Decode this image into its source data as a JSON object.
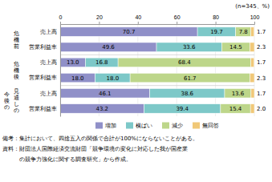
{
  "chart_data": {
    "type": "bar",
    "orientation": "horizontal",
    "stacked": true,
    "data_labels": true,
    "grid": true,
    "legend": "bottom",
    "categories": [
      "売上高",
      "営業利益率",
      "売上高",
      "営業利益率",
      "売上高",
      "営業利益率"
    ],
    "series": [
      {
        "name": "増加",
        "color": "#9090c8",
        "values": [
          70.7,
          49.6,
          13.0,
          18.0,
          46.1,
          43.2
        ],
        "value_labels": [
          "70.7",
          "49.6",
          "13.0",
          "18.0",
          "46.1",
          "43.2"
        ]
      },
      {
        "name": "横ばい",
        "color": "#7dc8c8",
        "values": [
          19.7,
          33.6,
          16.8,
          18.0,
          38.6,
          39.4
        ],
        "value_labels": [
          "19.7",
          "33.6",
          "16.8",
          "18.0",
          "38.6",
          "39.4"
        ]
      },
      {
        "name": "減少",
        "color": "#bdd68a",
        "values": [
          7.8,
          14.5,
          68.4,
          61.7,
          13.6,
          15.4
        ]
      },
      {
        "name": "無回答",
        "color": "#f0c878",
        "values": [
          1.7,
          2.3,
          1.7,
          2.3,
          1.7,
          2.0
        ],
        "value_labels": [
          "1.7",
          "2.3",
          "1.7",
          "2.3",
          "1.7",
          "2.0"
        ]
      }
    ],
    "xlim": [
      0,
      100
    ],
    "xticks": [
      0,
      20,
      40,
      60,
      80,
      100
    ],
    "annotations": [
      "(n=345、%)",
      "危\n機\n前",
      "危\n機\n後",
      "今\n後\nの",
      "見\n通\nし\nの",
      "備考：集計において、四捨五入の関係で合計が100%にならないことがある。",
      "資料：財団法人国際経済交流財団「競争環境の変化に対応した我が国産業",
      "　　　の競争力強化に関する調査研究」から作成。"
    ]
  }
}
